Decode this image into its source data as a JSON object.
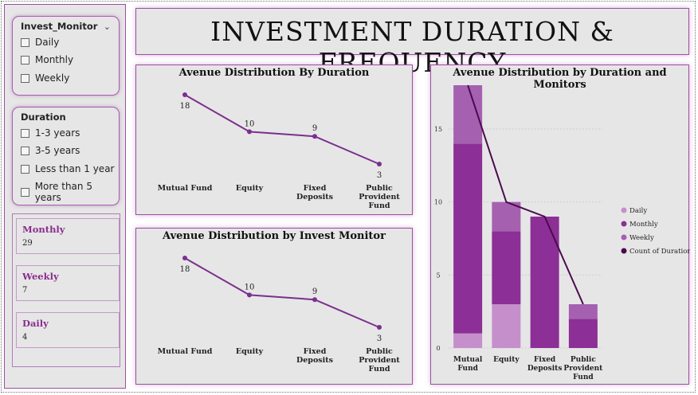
{
  "header": {
    "title": "INVESTMENT DURATION & FREQUENCY"
  },
  "slicers": {
    "invest_monitor": {
      "title": "Invest_Monitor",
      "options": [
        "Daily",
        "Monthly",
        "Weekly"
      ]
    },
    "duration": {
      "title": "Duration",
      "options": [
        "1-3 years",
        "3-5 years",
        "Less than 1 year",
        "More than 5 years"
      ]
    }
  },
  "kpis": [
    {
      "label": "Monthly",
      "value": "29"
    },
    {
      "label": "Weekly",
      "value": "7"
    },
    {
      "label": "Daily",
      "value": "4"
    }
  ],
  "colors": {
    "line": "#7b2f8e",
    "daily": "#c58fcb",
    "monthly": "#8c2f96",
    "weekly": "#a561b0",
    "count": "#4b0a4e"
  },
  "chart_data": [
    {
      "type": "line",
      "title": "Avenue Distribution By Duration",
      "categories": [
        "Mutual Fund",
        "Equity",
        "Fixed Deposits",
        "Public Provident Fund"
      ],
      "category_labels": [
        [
          "Mutual Fund"
        ],
        [
          "Equity"
        ],
        [
          "Fixed",
          "Deposits"
        ],
        [
          "Public",
          "Provident",
          "Fund"
        ]
      ],
      "values": [
        18,
        10,
        9,
        3
      ]
    },
    {
      "type": "line",
      "title": "Avenue Distribution by Invest Monitor",
      "categories": [
        "Mutual Fund",
        "Equity",
        "Fixed Deposits",
        "Public Provident Fund"
      ],
      "category_labels": [
        [
          "Mutual Fund"
        ],
        [
          "Equity"
        ],
        [
          "Fixed",
          "Deposits"
        ],
        [
          "Public",
          "Provident",
          "Fund"
        ]
      ],
      "values": [
        18,
        10,
        9,
        3
      ]
    },
    {
      "type": "bar",
      "stacked": true,
      "title": "Avenue Distribution by Duration and Monitors",
      "categories": [
        "Mutual Fund",
        "Equity",
        "Fixed Deposits",
        "Public Provident Fund"
      ],
      "category_labels": [
        [
          "Mutual",
          "Fund"
        ],
        [
          "Equity"
        ],
        [
          "Fixed",
          "Deposits"
        ],
        [
          "Public",
          "Provident",
          "Fund"
        ]
      ],
      "series": [
        {
          "name": "Daily",
          "values": [
            1,
            3,
            0,
            0
          ]
        },
        {
          "name": "Monthly",
          "values": [
            13,
            5,
            9,
            2
          ]
        },
        {
          "name": "Weekly",
          "values": [
            4,
            2,
            0,
            1
          ]
        }
      ],
      "line_series": {
        "name": "Count of Duration",
        "values": [
          18,
          10,
          9,
          3
        ]
      },
      "yticks": [
        0,
        5,
        10,
        15
      ],
      "ylim": [
        0,
        18
      ],
      "grid": true,
      "legend_position": "right"
    }
  ]
}
